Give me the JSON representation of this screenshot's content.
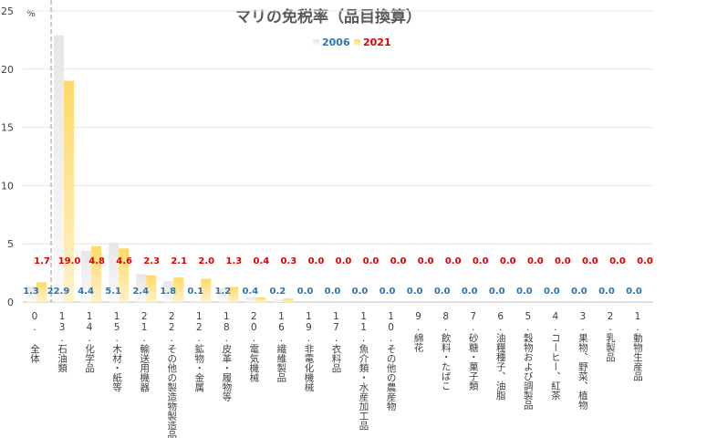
{
  "chart_data": {
    "type": "bar",
    "title": "マリの免税率（品目換算）",
    "unit_label": "%",
    "ylim": [
      0,
      25
    ],
    "yticks": [
      0,
      5,
      10,
      15,
      20,
      25
    ],
    "grid": true,
    "legend_position": "top-center",
    "categories": [
      "0. 全体",
      "13.石油類",
      "14.化学品",
      "15.木材・紙等",
      "21.輸送用機器",
      "22.その他の製造物製造品",
      "12.鉱物・金属",
      "18.皮革・履物等",
      "20.電気機械",
      "16.繊維製品",
      "19.非電化機械",
      "17.衣料品",
      "11.魚介類・水産加工品",
      "10.その他の農産物",
      "9.綿花",
      "8.飲料・たばこ",
      "7.砂糖・菓子類",
      "6.油糧種子、油脂",
      "5.穀物および調製品",
      "4.コーヒー、紅茶",
      "3.果物、野菜、植物",
      "2.乳製品",
      "1.動物生産品"
    ],
    "series": [
      {
        "name": "2006",
        "color": "#efefef",
        "label_color": "#2e75b6",
        "values": [
          1.3,
          22.9,
          4.4,
          5.1,
          2.4,
          1.8,
          0.1,
          1.2,
          0.4,
          0.2,
          0.0,
          0.0,
          0.0,
          0.0,
          0.0,
          0.0,
          0.0,
          0.0,
          0.0,
          0.0,
          0.0,
          0.0,
          0.0
        ]
      },
      {
        "name": "2021",
        "color": "#ffe699",
        "label_color": "#e00000",
        "values": [
          1.7,
          19.0,
          4.8,
          4.6,
          2.3,
          2.1,
          2.0,
          1.3,
          0.4,
          0.3,
          0.0,
          0.0,
          0.0,
          0.0,
          0.0,
          0.0,
          0.0,
          0.0,
          0.0,
          0.0,
          0.0,
          0.0,
          0.0
        ]
      }
    ]
  }
}
